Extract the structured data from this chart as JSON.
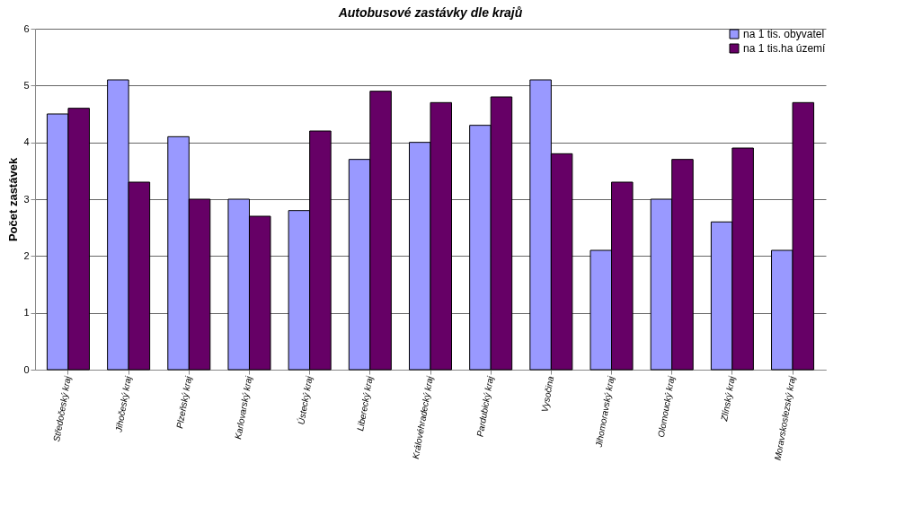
{
  "chart_data": {
    "type": "bar",
    "title": "Autobusové zastávky dle krajů",
    "ylabel": "Počet zastávek",
    "categories": [
      "Středočeský kraj",
      "Jihočeský kraj",
      "Plzeňský kraj",
      "Karlovarský kraj",
      "Ústecký kraj",
      "Liberecký kraj",
      "Královéhradecký kraj",
      "Pardubický kraj",
      "Vysočina",
      "Jihomoravský kraj",
      "Olomoucký kraj",
      "Zlínský kraj",
      "Moravskoslezský kraj"
    ],
    "series": [
      {
        "name": "na 1 tis. obyvatel",
        "color": "#9999ff",
        "values": [
          4.5,
          5.1,
          4.1,
          3.0,
          2.8,
          3.7,
          4.0,
          4.3,
          5.1,
          2.1,
          3.0,
          2.6,
          2.1
        ]
      },
      {
        "name": "na 1 tis.ha území",
        "color": "#660066",
        "values": [
          4.6,
          3.3,
          3.0,
          2.7,
          4.2,
          4.9,
          4.7,
          4.8,
          3.8,
          3.3,
          3.7,
          3.9,
          4.7
        ]
      }
    ],
    "ylim": [
      0,
      6
    ],
    "yticks": [
      0,
      1,
      2,
      3,
      4,
      5,
      6
    ],
    "grid": "y",
    "legend": "top right"
  }
}
